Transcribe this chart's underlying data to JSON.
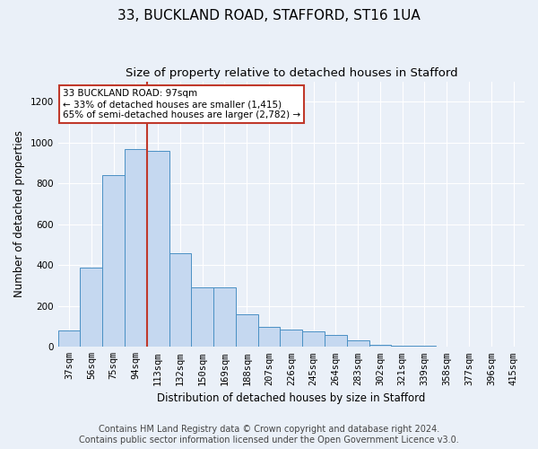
{
  "title_line1": "33, BUCKLAND ROAD, STAFFORD, ST16 1UA",
  "title_line2": "Size of property relative to detached houses in Stafford",
  "xlabel": "Distribution of detached houses by size in Stafford",
  "ylabel": "Number of detached properties",
  "categories": [
    "37sqm",
    "56sqm",
    "75sqm",
    "94sqm",
    "113sqm",
    "132sqm",
    "150sqm",
    "169sqm",
    "188sqm",
    "207sqm",
    "226sqm",
    "245sqm",
    "264sqm",
    "283sqm",
    "302sqm",
    "321sqm",
    "339sqm",
    "358sqm",
    "377sqm",
    "396sqm",
    "415sqm"
  ],
  "values": [
    80,
    390,
    840,
    970,
    960,
    460,
    290,
    290,
    160,
    100,
    85,
    75,
    60,
    30,
    10,
    5,
    5,
    3,
    2,
    1,
    1
  ],
  "bar_color": "#c5d8f0",
  "bar_edge_color": "#4a90c4",
  "vline_x_index": 3,
  "vline_color": "#c0392b",
  "annotation_text": "33 BUCKLAND ROAD: 97sqm\n← 33% of detached houses are smaller (1,415)\n65% of semi-detached houses are larger (2,782) →",
  "annotation_box_color": "white",
  "annotation_box_edge_color": "#c0392b",
  "ylim": [
    0,
    1300
  ],
  "yticks": [
    0,
    200,
    400,
    600,
    800,
    1000,
    1200
  ],
  "footer_line1": "Contains HM Land Registry data © Crown copyright and database right 2024.",
  "footer_line2": "Contains public sector information licensed under the Open Government Licence v3.0.",
  "bg_color": "#eaf0f8",
  "plot_bg_color": "#eaf0f8",
  "title_fontsize": 11,
  "subtitle_fontsize": 9.5,
  "label_fontsize": 8.5,
  "tick_fontsize": 7.5,
  "footer_fontsize": 7
}
